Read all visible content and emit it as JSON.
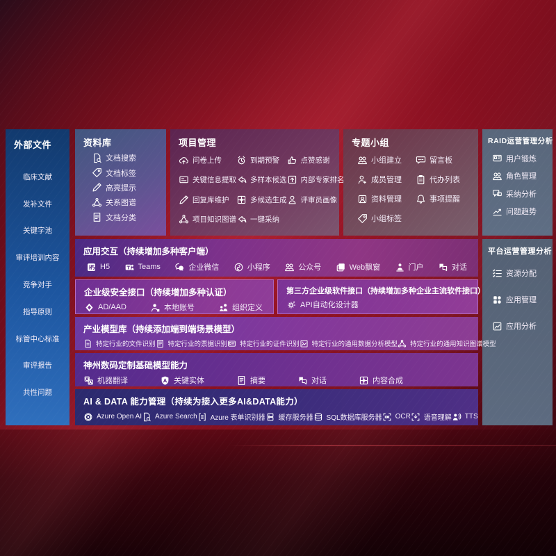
{
  "colors": {
    "background_red": "#7c0f1e",
    "sidebar_blue": "#1d56a0",
    "top_panel_purple": "#71395f",
    "side_panel_slate": "#5d6b80",
    "band_purple": "#8f3684",
    "interface_band_magenta": "#8d3a96",
    "ai_band_indigo": "#3c2d7c",
    "text_white": "#ffffff"
  },
  "sidebar": {
    "title": "外部文件",
    "items": [
      {
        "label": "临床文献"
      },
      {
        "label": "发补文件"
      },
      {
        "label": "关键字池"
      },
      {
        "label": "审评培训内容"
      },
      {
        "label": "竞争对手"
      },
      {
        "label": "指导原则"
      },
      {
        "label": "标管中心标准"
      },
      {
        "label": "审评报告"
      },
      {
        "label": "共性问题"
      }
    ]
  },
  "panels": {
    "repo": {
      "title": "资料库",
      "items": [
        {
          "icon": "doc-search-icon",
          "label": "文档搜索"
        },
        {
          "icon": "doc-tag-icon",
          "label": "文档标签"
        },
        {
          "icon": "highlight-pen-icon",
          "label": "高亮提示"
        },
        {
          "icon": "relation-graph-icon",
          "label": "关系图谱"
        },
        {
          "icon": "doc-category-icon",
          "label": "文档分类"
        }
      ]
    },
    "project": {
      "title": "项目管理",
      "items": [
        {
          "icon": "cloud-upload-icon",
          "label": "问卷上传"
        },
        {
          "icon": "alarm-warning-icon",
          "label": "到期预警"
        },
        {
          "icon": "thumbs-up-icon",
          "label": "点赞感谢"
        },
        {
          "icon": "info-extract-icon",
          "label": "关键信息提取"
        },
        {
          "icon": "multi-sample-icon",
          "label": "多样本候选"
        },
        {
          "icon": "expert-rank-icon",
          "label": "内部专家排名"
        },
        {
          "icon": "reply-maintain-icon",
          "label": "回复库维护"
        },
        {
          "icon": "multi-generate-icon",
          "label": "多候选生成"
        },
        {
          "icon": "reviewer-profile-icon",
          "label": "评审员画像"
        },
        {
          "icon": "knowledge-graph-icon",
          "label": "项目知识图谱"
        },
        {
          "icon": "one-click-adopt-icon",
          "label": "一键采纳"
        }
      ]
    },
    "topic": {
      "title": "专题小组",
      "items": [
        {
          "icon": "group-create-icon",
          "label": "小组建立"
        },
        {
          "icon": "message-board-icon",
          "label": "留言板"
        },
        {
          "icon": "member-manage-icon",
          "label": "成员管理"
        },
        {
          "icon": "todo-list-icon",
          "label": "代办列表"
        },
        {
          "icon": "material-manage-icon",
          "label": "资料管理"
        },
        {
          "icon": "reminder-bell-icon",
          "label": "事项提醒"
        },
        {
          "icon": "group-tag-icon",
          "label": "小组标签"
        }
      ]
    },
    "raid": {
      "title": "RAID运营管理分析",
      "items": [
        {
          "icon": "user-profile-icon",
          "label": "用户锻炼"
        },
        {
          "icon": "role-manage-icon",
          "label": "角色管理"
        },
        {
          "icon": "adoption-analysis-icon",
          "label": "采纳分析"
        },
        {
          "icon": "issue-trend-icon",
          "label": "问题趋势"
        }
      ]
    },
    "platform": {
      "title": "平台运营管理分析",
      "items": [
        {
          "icon": "resource-allocation-icon",
          "label": "资源分配"
        },
        {
          "icon": "app-manage-icon",
          "label": "应用管理"
        },
        {
          "icon": "app-analysis-icon",
          "label": "应用分析"
        }
      ]
    }
  },
  "bands": {
    "interaction": {
      "title": "应用交互（持续增加多种客户端）",
      "items": [
        {
          "icon": "h5-icon",
          "label": "H5"
        },
        {
          "icon": "teams-icon",
          "label": "Teams"
        },
        {
          "icon": "wechat-work-icon",
          "label": "企业微信"
        },
        {
          "icon": "miniprogram-icon",
          "label": "小程序"
        },
        {
          "icon": "official-account-icon",
          "label": "公众号"
        },
        {
          "icon": "web-popup-icon",
          "label": "Web飘窗"
        },
        {
          "icon": "portal-icon",
          "label": "门户"
        },
        {
          "icon": "dialog-icon",
          "label": "对话"
        }
      ]
    },
    "security": {
      "title": "企业级安全接口（持续增加多种认证）",
      "items": [
        {
          "icon": "ad-aad-icon",
          "label": "AD/AAD"
        },
        {
          "icon": "local-account-icon",
          "label": "本地账号"
        },
        {
          "icon": "org-define-icon",
          "label": "组织定义"
        }
      ]
    },
    "thirdparty": {
      "title": "第三方企业级软件接口（持续增加多种企业主流软件接口）",
      "items": [
        {
          "icon": "api-designer-icon",
          "label": "API自动化设计器"
        }
      ]
    },
    "industry": {
      "title": "产业模型库（持续添加端到端场景模型）",
      "items": [
        {
          "icon": "file-recognition-icon",
          "label": "特定行业的文件识别"
        },
        {
          "icon": "invoice-recognition-icon",
          "label": "特定行业的票据识别"
        },
        {
          "icon": "idcard-recognition-icon",
          "label": "特定行业的证件识别"
        },
        {
          "icon": "data-analysis-model-icon",
          "label": "特定行业的通用数据分析模型"
        },
        {
          "icon": "knowledge-graph-model-icon",
          "label": "特定行业的通用知识图谱模型"
        }
      ]
    },
    "basemodel": {
      "title": "神州数码定制基础模型能力",
      "items": [
        {
          "icon": "machine-translate-icon",
          "label": "机器翻译"
        },
        {
          "icon": "key-entity-icon",
          "label": "关键实体"
        },
        {
          "icon": "summary-icon",
          "label": "摘要"
        },
        {
          "icon": "dialog-icon",
          "label": "对话"
        },
        {
          "icon": "content-compose-icon",
          "label": "内容合成"
        }
      ]
    },
    "aidata": {
      "title": "AI & DATA 能力管理（持续为接入更多AI&DATA能力）",
      "items": [
        {
          "icon": "azure-openai-icon",
          "label": "Azure Open AI"
        },
        {
          "icon": "azure-search-icon",
          "label": "Azure Search"
        },
        {
          "icon": "azure-form-icon",
          "label": "Azure 表单识别器"
        },
        {
          "icon": "cache-server-icon",
          "label": "缓存服务器"
        },
        {
          "icon": "sql-server-icon",
          "label": "SQL数据库服务器"
        },
        {
          "icon": "ocr-icon",
          "label": "OCR"
        },
        {
          "icon": "speech-icon",
          "label": "语音理解"
        },
        {
          "icon": "tts-icon",
          "label": "TTS"
        }
      ]
    }
  }
}
